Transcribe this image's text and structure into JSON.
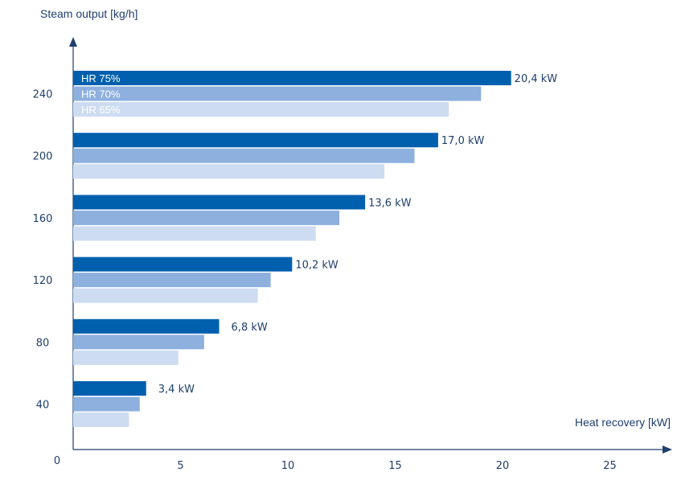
{
  "chart_data": {
    "type": "bar",
    "orientation": "horizontal",
    "title": "",
    "ylabel": "Steam output [kg/h]",
    "xlabel": "Heat recovery [kW]",
    "categories": [
      "240",
      "200",
      "160",
      "120",
      "80",
      "40"
    ],
    "y_origin_label": "0",
    "x_ticks": [
      "5",
      "10",
      "15",
      "20",
      "25"
    ],
    "x_tick_values": [
      5,
      10,
      15,
      20,
      25
    ],
    "xlim": [
      0,
      27
    ],
    "series": [
      {
        "name": "HR 75%",
        "color": "#0060ad",
        "values": [
          20.4,
          17.0,
          13.6,
          10.2,
          6.8,
          3.4
        ]
      },
      {
        "name": "HR 70%",
        "color": "#8db0de",
        "values": [
          19.0,
          15.9,
          12.4,
          9.2,
          6.1,
          3.1
        ]
      },
      {
        "name": "HR 65%",
        "color": "#cddcf1",
        "values": [
          17.5,
          14.5,
          11.3,
          8.6,
          4.9,
          2.6
        ]
      }
    ],
    "value_labels": [
      "20,4 kW",
      "17,0 kW",
      "13,6 kW",
      "10,2 kW",
      "6,8 kW",
      "3,4 kW"
    ],
    "axis_color": "#1f3f6e",
    "legend": "inside-top-bars"
  }
}
